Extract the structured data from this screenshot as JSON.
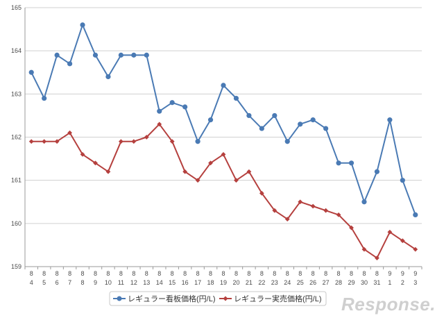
{
  "chart_data": {
    "type": "line",
    "categories": [
      [
        "8",
        "4"
      ],
      [
        "8",
        "5"
      ],
      [
        "8",
        "6"
      ],
      [
        "8",
        "7"
      ],
      [
        "8",
        "8"
      ],
      [
        "8",
        "9"
      ],
      [
        "8",
        "10"
      ],
      [
        "8",
        "11"
      ],
      [
        "8",
        "12"
      ],
      [
        "8",
        "13"
      ],
      [
        "8",
        "14"
      ],
      [
        "8",
        "15"
      ],
      [
        "8",
        "16"
      ],
      [
        "8",
        "17"
      ],
      [
        "8",
        "18"
      ],
      [
        "8",
        "19"
      ],
      [
        "8",
        "20"
      ],
      [
        "8",
        "21"
      ],
      [
        "8",
        "22"
      ],
      [
        "8",
        "23"
      ],
      [
        "8",
        "24"
      ],
      [
        "8",
        "25"
      ],
      [
        "8",
        "26"
      ],
      [
        "8",
        "27"
      ],
      [
        "8",
        "28"
      ],
      [
        "8",
        "29"
      ],
      [
        "8",
        "30"
      ],
      [
        "8",
        "31"
      ],
      [
        "9",
        "1"
      ],
      [
        "9",
        "2"
      ],
      [
        "9",
        "3"
      ]
    ],
    "series": [
      {
        "name": "レギュラー看板価格(円/L)",
        "color": "#4a7ab4",
        "marker": "circle",
        "values": [
          163.5,
          162.9,
          163.9,
          163.7,
          164.6,
          163.9,
          163.4,
          163.9,
          163.9,
          163.9,
          162.6,
          162.8,
          162.7,
          161.9,
          162.4,
          163.2,
          162.9,
          162.5,
          162.2,
          162.5,
          161.9,
          162.3,
          162.4,
          162.2,
          161.4,
          161.4,
          160.5,
          161.2,
          162.4,
          161.0,
          160.2
        ]
      },
      {
        "name": "レギュラー実売価格(円/L)",
        "color": "#b5403e",
        "marker": "diamond",
        "values": [
          161.9,
          161.9,
          161.9,
          162.1,
          161.6,
          161.4,
          161.2,
          161.9,
          161.9,
          162.0,
          162.3,
          161.9,
          161.2,
          161.0,
          161.4,
          161.6,
          161.0,
          161.2,
          160.7,
          160.3,
          160.1,
          160.5,
          160.4,
          160.3,
          160.2,
          159.9,
          159.4,
          159.2,
          159.8,
          159.6,
          159.4
        ]
      }
    ],
    "ylim": [
      159,
      165
    ],
    "yticks": [
      "159",
      "160",
      "161",
      "162",
      "163",
      "164",
      "165"
    ],
    "grid": true,
    "legend_position": "bottom-left"
  },
  "watermark": "Response."
}
